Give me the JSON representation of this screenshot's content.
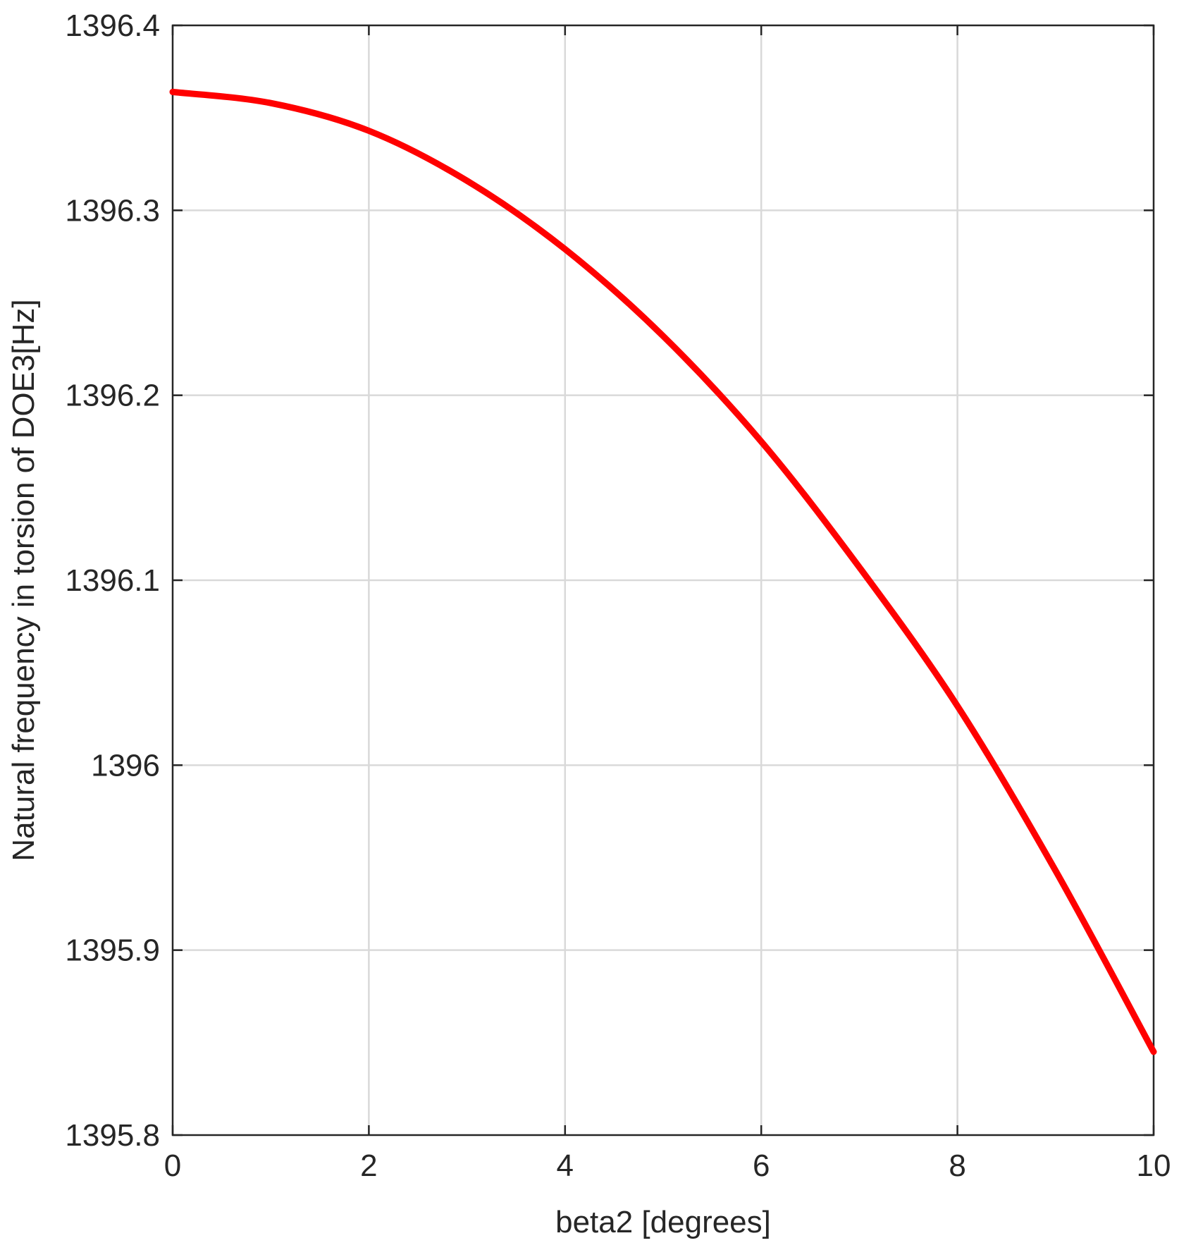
{
  "chart_data": {
    "type": "line",
    "xlabel": "beta2 [degrees]",
    "ylabel": "Natural frequency in torsion of DOE3[Hz]",
    "xlim": [
      0,
      10
    ],
    "ylim": [
      1395.8,
      1396.4
    ],
    "xticks": [
      0,
      2,
      4,
      6,
      8,
      10
    ],
    "xtick_labels": [
      "0",
      "2",
      "4",
      "6",
      "8",
      "10"
    ],
    "yticks": [
      1395.8,
      1395.9,
      1396,
      1396.1,
      1396.2,
      1396.3,
      1396.4
    ],
    "ytick_labels": [
      "1395.8",
      "1395.9",
      "1396",
      "1396.1",
      "1396.2",
      "1396.3",
      "1396.4"
    ],
    "grid": true,
    "series": [
      {
        "color": "#ff0000",
        "x": [
          0,
          1,
          2,
          3,
          4,
          5,
          6,
          7,
          8,
          9,
          10
        ],
        "y": [
          1396.364,
          1396.358,
          1396.343,
          1396.316,
          1396.279,
          1396.232,
          1396.175,
          1396.107,
          1396.032,
          1395.943,
          1395.845
        ]
      }
    ]
  }
}
